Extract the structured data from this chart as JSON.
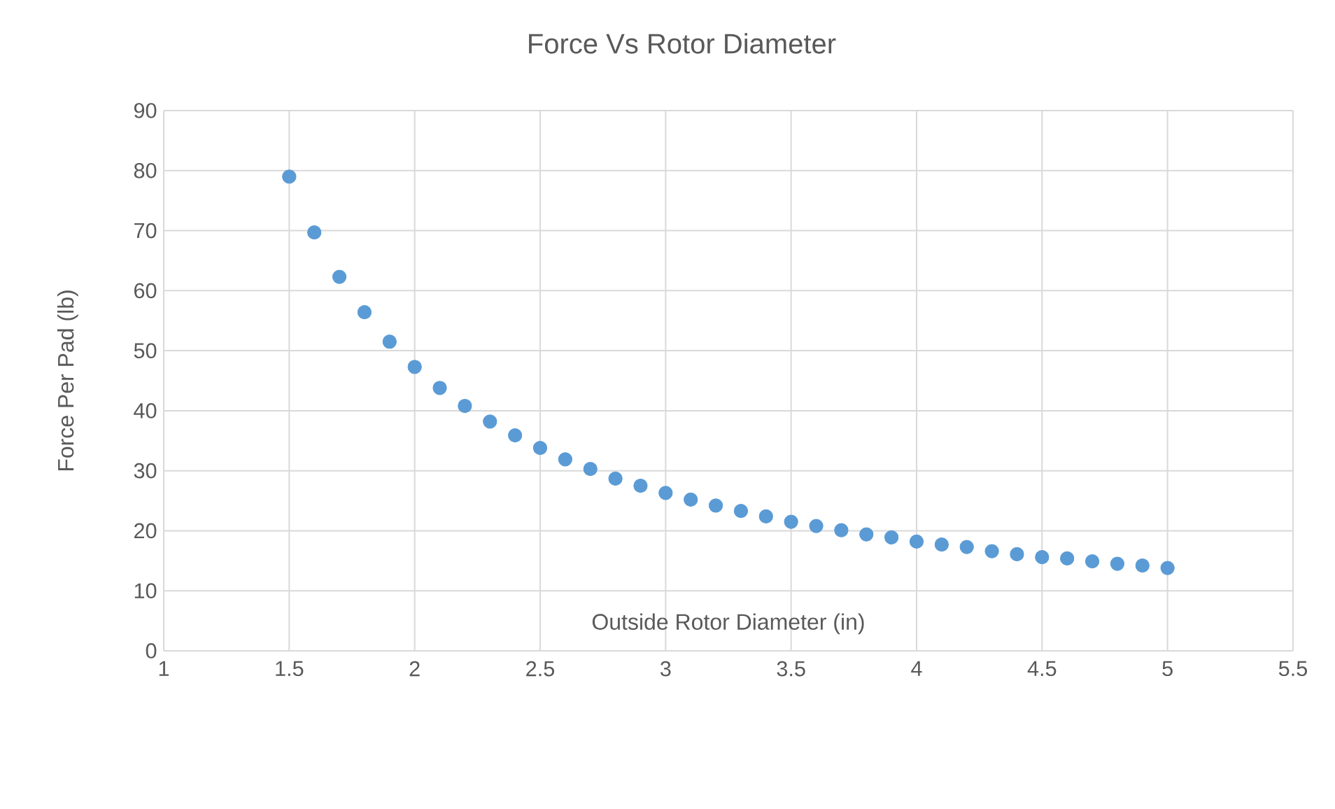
{
  "chart_data": {
    "type": "scatter",
    "title": "Force Vs Rotor Diameter",
    "xlabel": "Outside Rotor Diameter (in)",
    "ylabel": "Force Per Pad (lb)",
    "x": [
      1.5,
      1.6,
      1.7,
      1.8,
      1.9,
      2.0,
      2.1,
      2.2,
      2.3,
      2.4,
      2.5,
      2.6,
      2.7,
      2.8,
      2.9,
      3.0,
      3.1,
      3.2,
      3.3,
      3.4,
      3.5,
      3.6,
      3.7,
      3.8,
      3.9,
      4.0,
      4.1,
      4.2,
      4.3,
      4.4,
      4.5,
      4.6,
      4.7,
      4.8,
      4.9,
      5.0
    ],
    "series": [
      {
        "color": "#5b9bd5",
        "values": [
          79,
          69.7,
          62.3,
          56.4,
          51.5,
          47.3,
          43.8,
          40.8,
          38.2,
          35.9,
          33.8,
          31.9,
          30.3,
          28.7,
          27.5,
          26.3,
          25.2,
          24.2,
          23.3,
          22.4,
          21.5,
          20.8,
          20.1,
          19.4,
          18.9,
          18.2,
          17.7,
          17.3,
          16.6,
          16.1,
          15.6,
          15.4,
          14.9,
          14.5,
          14.2,
          13.8
        ]
      }
    ],
    "xlim": [
      1,
      5.5
    ],
    "xticks": [
      1,
      1.5,
      2,
      2.5,
      3,
      3.5,
      4,
      4.5,
      5,
      5.5
    ],
    "ylim": [
      0,
      90
    ],
    "yticks": [
      0,
      10,
      20,
      30,
      40,
      50,
      60,
      70,
      80,
      90
    ],
    "grid": true
  }
}
